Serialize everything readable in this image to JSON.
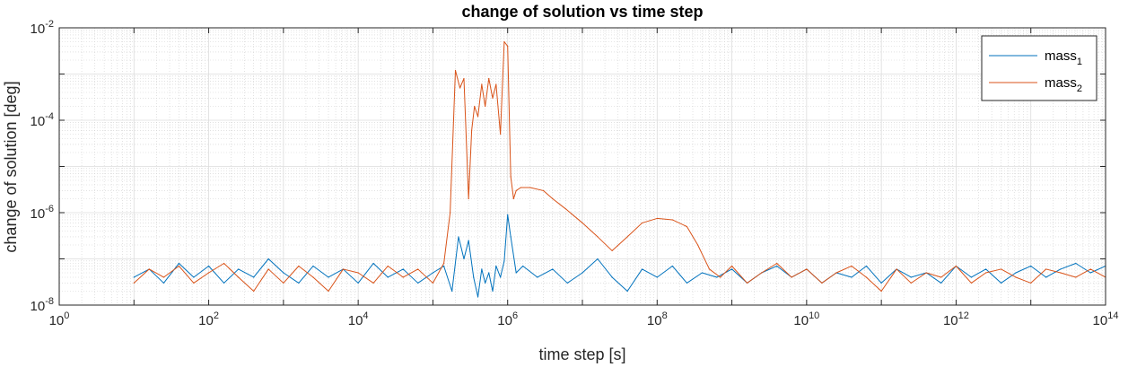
{
  "chart_data": {
    "type": "line",
    "title": "change of solution vs time step",
    "xlabel": "time step [s]",
    "ylabel": "change of solution [deg]",
    "xscale": "log",
    "yscale": "log",
    "xlim": [
      1,
      100000000000000.0
    ],
    "ylim": [
      1e-08,
      0.01
    ],
    "x_ticks": [
      {
        "value": 1,
        "base": "10",
        "exp": "0"
      },
      {
        "value": 100,
        "base": "10",
        "exp": "2"
      },
      {
        "value": 10000,
        "base": "10",
        "exp": "4"
      },
      {
        "value": 1000000,
        "base": "10",
        "exp": "6"
      },
      {
        "value": 100000000,
        "base": "10",
        "exp": "8"
      },
      {
        "value": 10000000000,
        "base": "10",
        "exp": "10"
      },
      {
        "value": 1000000000000,
        "base": "10",
        "exp": "12"
      },
      {
        "value": 100000000000000,
        "base": "10",
        "exp": "14"
      }
    ],
    "y_ticks": [
      {
        "value": 1e-08,
        "base": "10",
        "exp": "-8"
      },
      {
        "value": 1e-06,
        "base": "10",
        "exp": "-6"
      },
      {
        "value": 0.0001,
        "base": "10",
        "exp": "-4"
      },
      {
        "value": 0.01,
        "base": "10",
        "exp": "-2"
      }
    ],
    "grid": true,
    "minor_grid": true,
    "legend_position": "top-right",
    "series": [
      {
        "name": "mass",
        "name_sub": "1",
        "color": "#0072BD",
        "x": [
          10.0,
          16.0,
          25.0,
          40.0,
          63.0,
          100.0,
          160.0,
          250.0,
          400.0,
          630.0,
          1000.0,
          1600.0,
          2500.0,
          4000.0,
          6300.0,
          10000.0,
          16000.0,
          25000.0,
          40000.0,
          63000.0,
          100000.0,
          140000.0,
          180000.0,
          220000.0,
          260000.0,
          300000.0,
          350000.0,
          400000.0,
          450000.0,
          500000.0,
          560000.0,
          630000.0,
          700000.0,
          800000.0,
          900000.0,
          1000000.0,
          1100000.0,
          1300000.0,
          1600000.0,
          2500000.0,
          4000000.0,
          6300000.0,
          10000000.0,
          16000000.0,
          25000000.0,
          40000000.0,
          63000000.0,
          100000000.0,
          160000000.0,
          250000000.0,
          400000000.0,
          630000000.0,
          1000000000.0,
          1600000000.0,
          2500000000.0,
          4000000000.0,
          6300000000.0,
          10000000000.0,
          16000000000.0,
          25000000000.0,
          40000000000.0,
          63000000000.0,
          100000000000.0,
          160000000000.0,
          250000000000.0,
          400000000000.0,
          630000000000.0,
          1000000000000.0,
          1600000000000.0,
          2500000000000.0,
          4000000000000.0,
          6300000000000.0,
          10000000000000.0,
          16000000000000.0,
          25000000000000.0,
          40000000000000.0,
          63000000000000.0,
          100000000000000.0
        ],
        "y": [
          4e-08,
          6e-08,
          3e-08,
          8e-08,
          4e-08,
          7e-08,
          3e-08,
          6e-08,
          4e-08,
          1e-07,
          5e-08,
          3e-08,
          7e-08,
          4e-08,
          6e-08,
          3e-08,
          8e-08,
          4e-08,
          6e-08,
          3e-08,
          5e-08,
          7e-08,
          2e-08,
          3e-07,
          1e-07,
          2.5e-07,
          4e-08,
          1.5e-08,
          6e-08,
          3e-08,
          5e-08,
          2e-08,
          7e-08,
          4e-08,
          9e-08,
          9e-07,
          3e-07,
          5e-08,
          7e-08,
          4e-08,
          6e-08,
          3e-08,
          5e-08,
          1e-07,
          4e-08,
          2e-08,
          6e-08,
          4e-08,
          7e-08,
          3e-08,
          5e-08,
          4e-08,
          6e-08,
          3e-08,
          5e-08,
          7e-08,
          4e-08,
          6e-08,
          3e-08,
          5e-08,
          4e-08,
          7e-08,
          3e-08,
          6e-08,
          4e-08,
          5e-08,
          3e-08,
          7e-08,
          4e-08,
          6e-08,
          3e-08,
          5e-08,
          7e-08,
          4e-08,
          6e-08,
          8e-08,
          5e-08,
          7e-08
        ]
      },
      {
        "name": "mass",
        "name_sub": "2",
        "color": "#D95319",
        "x": [
          10.0,
          16.0,
          25.0,
          40.0,
          63.0,
          100.0,
          160.0,
          250.0,
          400.0,
          630.0,
          1000.0,
          1600.0,
          2500.0,
          4000.0,
          6300.0,
          10000.0,
          16000.0,
          25000.0,
          40000.0,
          63000.0,
          100000.0,
          140000.0,
          170000.0,
          200000.0,
          230000.0,
          260000.0,
          300000.0,
          330000.0,
          360000.0,
          400000.0,
          450000.0,
          500000.0,
          560000.0,
          630000.0,
          700000.0,
          800000.0,
          900000.0,
          1000000.0,
          1100000.0,
          1200000.0,
          1300000.0,
          1500000.0,
          2000000.0,
          3000000.0,
          4000000.0,
          6000000.0,
          10000000.0,
          16000000.0,
          25000000.0,
          40000000.0,
          63000000.0,
          100000000.0,
          160000000.0,
          250000000.0,
          350000000.0,
          500000000.0,
          700000000.0,
          1000000000.0,
          1600000000.0,
          2500000000.0,
          4000000000.0,
          6300000000.0,
          10000000000.0,
          16000000000.0,
          25000000000.0,
          40000000000.0,
          63000000000.0,
          100000000000.0,
          160000000000.0,
          250000000000.0,
          400000000000.0,
          630000000000.0,
          1000000000000.0,
          1600000000000.0,
          2500000000000.0,
          4000000000000.0,
          6300000000000.0,
          10000000000000.0,
          16000000000000.0,
          25000000000000.0,
          40000000000000.0,
          63000000000000.0,
          100000000000000.0
        ],
        "y": [
          3e-08,
          6e-08,
          4e-08,
          7e-08,
          3e-08,
          5e-08,
          8e-08,
          4e-08,
          2e-08,
          6e-08,
          3e-08,
          7e-08,
          4e-08,
          2e-08,
          6e-08,
          5e-08,
          3e-08,
          7e-08,
          4e-08,
          6e-08,
          3e-08,
          8e-08,
          1e-06,
          0.0012,
          0.0005,
          0.0008,
          2e-06,
          6e-05,
          0.0002,
          0.00012,
          0.0006,
          0.0002,
          0.0008,
          0.0003,
          0.0006,
          5e-05,
          0.005,
          0.004,
          6e-06,
          2e-06,
          3e-06,
          3.5e-06,
          3.5e-06,
          3e-06,
          2e-06,
          1.2e-06,
          6e-07,
          3e-07,
          1.5e-07,
          3e-07,
          6e-07,
          7.5e-07,
          7e-07,
          5e-07,
          2e-07,
          6e-08,
          4e-08,
          7e-08,
          3e-08,
          5e-08,
          8e-08,
          4e-08,
          6e-08,
          3e-08,
          5e-08,
          7e-08,
          4e-08,
          2e-08,
          6e-08,
          3e-08,
          5e-08,
          4e-08,
          7e-08,
          3e-08,
          5e-08,
          6e-08,
          4e-08,
          3e-08,
          6e-08,
          5e-08,
          4e-08,
          6e-08,
          4e-08
        ]
      }
    ]
  }
}
